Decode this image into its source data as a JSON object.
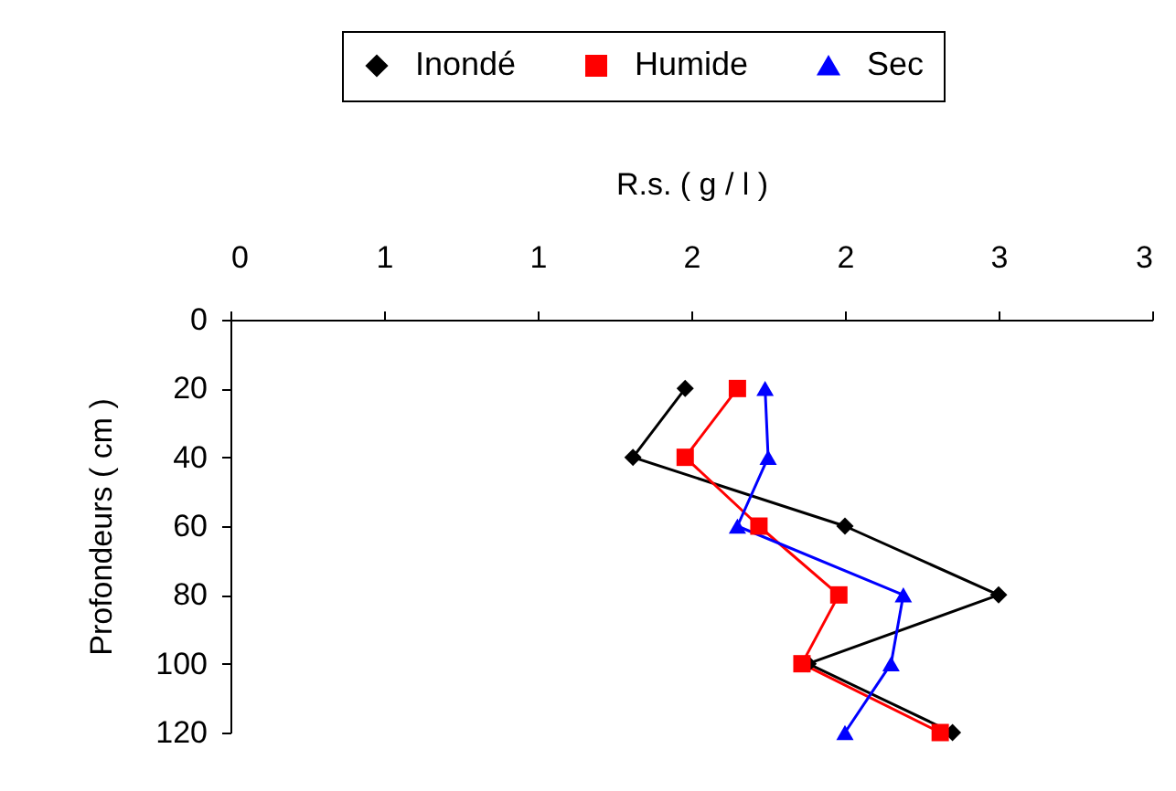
{
  "chart_data": {
    "type": "line",
    "xlabel": "R.s. ( g / l )",
    "ylabel": "Profondeurs ( cm )",
    "xlim": [
      0,
      3
    ],
    "xticks": [
      0,
      {
        "value": 0.5,
        "label": "1"
      },
      1,
      {
        "value": 1.5,
        "label": "2"
      },
      {
        "value": 2,
        "label": "2"
      },
      {
        "value": 2.5,
        "label": "3"
      },
      3
    ],
    "ylim": [
      120,
      0
    ],
    "yticks": [
      0,
      20,
      40,
      60,
      80,
      100,
      120
    ],
    "legend": "top",
    "grid": false,
    "line_style": "solid",
    "series": [
      {
        "name": "Inondé",
        "color": "#000000",
        "marker": "diamond",
        "x": [
          1.48,
          1.31,
          2.0,
          2.5,
          1.88,
          2.35
        ],
        "values": [
          20,
          40,
          60,
          80,
          100,
          120
        ]
      },
      {
        "name": "Humide",
        "color": "#ff0000",
        "marker": "square",
        "x": [
          1.65,
          1.48,
          1.72,
          1.98,
          1.86,
          2.31
        ],
        "values": [
          20,
          40,
          60,
          80,
          100,
          120
        ]
      },
      {
        "name": "Sec",
        "color": "#0000ff",
        "marker": "triangle",
        "x": [
          1.74,
          1.75,
          1.65,
          2.19,
          2.15,
          2.0
        ],
        "values": [
          20,
          40,
          60,
          80,
          100,
          120
        ]
      }
    ]
  }
}
